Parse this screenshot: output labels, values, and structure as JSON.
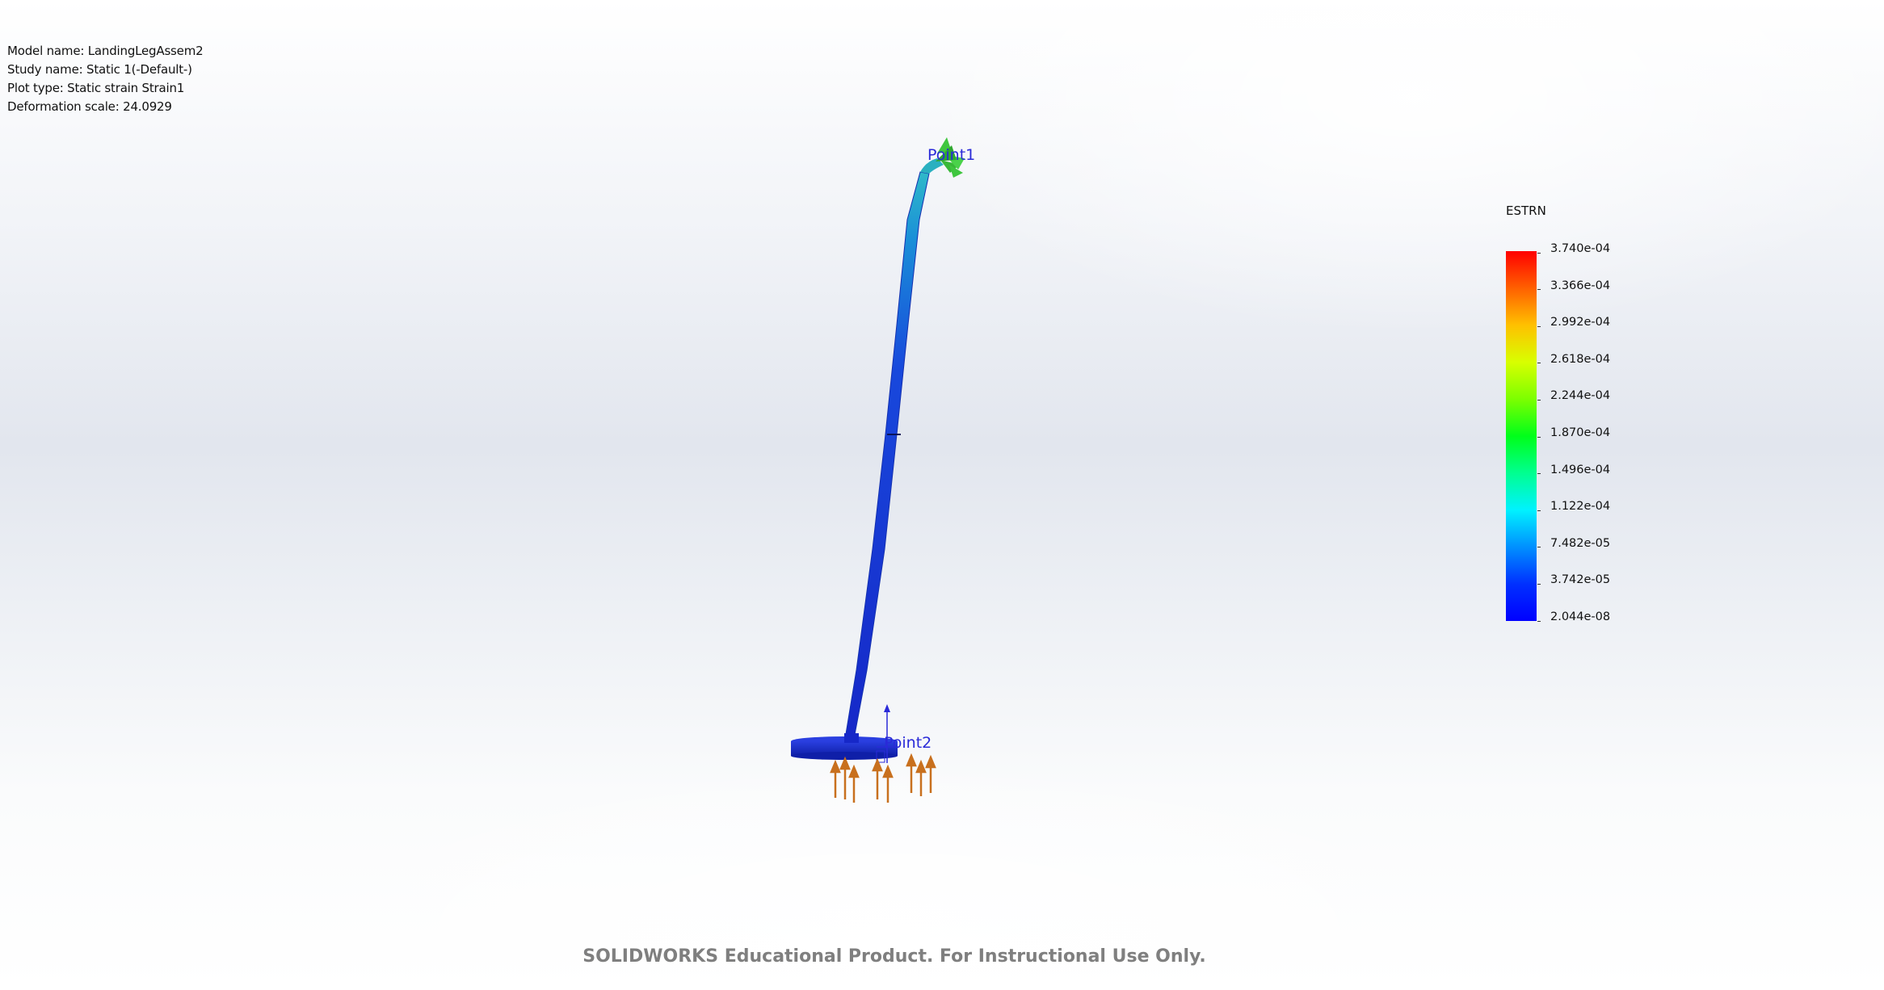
{
  "study_info": {
    "model_name": "Model name: LandingLegAssem2",
    "study_name": "Study name: Static 1(-Default-)",
    "plot_type": "Plot type: Static strain Strain1",
    "deformation_scale": "Deformation scale: 24.0929"
  },
  "legend": {
    "title": "ESTRN",
    "ticks": [
      "3.740e-04",
      "3.366e-04",
      "2.992e-04",
      "2.618e-04",
      "2.244e-04",
      "1.870e-04",
      "1.496e-04",
      "1.122e-04",
      "7.482e-05",
      "3.742e-05",
      "2.044e-08"
    ],
    "colors": {
      "max": "#ff0000",
      "min": "#0000ff"
    }
  },
  "model": {
    "point1_label": "Point1",
    "point2_label": "Point2",
    "body_color": "#1a2fd0",
    "load_arrow_color": "#c8701e",
    "fixture_color": "#3fc63f"
  },
  "watermark": "SOLIDWORKS Educational Product. For Instructional Use Only."
}
